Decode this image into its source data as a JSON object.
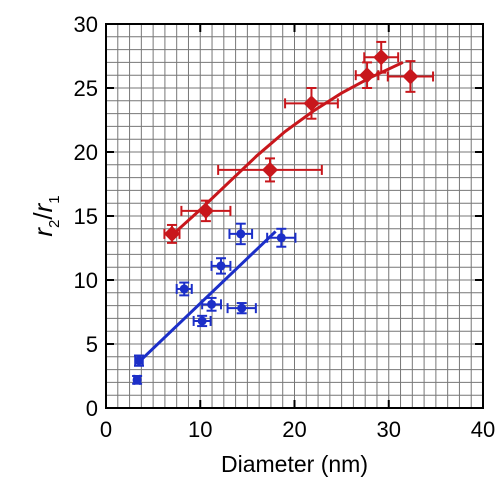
{
  "chart_data": {
    "type": "scatter",
    "title": "",
    "xlabel": "Diameter (nm)",
    "ylabel": {
      "base1": "r",
      "sub1": "2",
      "slash": "/",
      "base2": "r",
      "sub2": "1"
    },
    "xlim": [
      0,
      40
    ],
    "ylim": [
      0,
      30
    ],
    "xticks": [
      0,
      10,
      20,
      30,
      40
    ],
    "yticks": [
      0,
      5,
      10,
      15,
      20,
      25,
      30
    ],
    "grid": true,
    "grid_minor_step": {
      "x": 1.25,
      "y": 1.0
    },
    "legend": "none",
    "series": [
      {
        "color": "#c8171c",
        "marker": "diamond",
        "points": [
          {
            "x": 7.0,
            "y": 13.6,
            "xerr": 0.8,
            "yerr": 0.7
          },
          {
            "x": 10.6,
            "y": 15.4,
            "xerr": 2.6,
            "yerr": 0.8
          },
          {
            "x": 17.4,
            "y": 18.6,
            "xerr": 5.5,
            "yerr": 0.9
          },
          {
            "x": 21.8,
            "y": 23.8,
            "xerr": 2.8,
            "yerr": 1.2
          },
          {
            "x": 27.7,
            "y": 26.0,
            "xerr": 1.2,
            "yerr": 1.0
          },
          {
            "x": 29.2,
            "y": 27.4,
            "xerr": 1.8,
            "yerr": 1.2
          },
          {
            "x": 32.3,
            "y": 25.9,
            "xerr": 2.4,
            "yerr": 1.2
          }
        ],
        "fit": {
          "kind": "curve",
          "x": [
            7.0,
            10.0,
            13.0,
            16.0,
            19.0,
            22.0,
            25.0,
            28.0,
            31.5
          ],
          "y": [
            13.5,
            15.5,
            17.6,
            19.7,
            21.6,
            23.2,
            24.6,
            25.8,
            27.0
          ]
        }
      },
      {
        "color": "#1c2fc8",
        "marker": "circle",
        "points": [
          {
            "x": 3.3,
            "y": 2.2,
            "xerr": 0.3,
            "yerr": 0.3
          },
          {
            "x": 3.5,
            "y": 3.7,
            "xerr": 0.4,
            "yerr": 0.4
          },
          {
            "x": 8.3,
            "y": 9.3,
            "xerr": 0.8,
            "yerr": 0.5
          },
          {
            "x": 10.2,
            "y": 6.8,
            "xerr": 0.9,
            "yerr": 0.4
          },
          {
            "x": 11.2,
            "y": 8.1,
            "xerr": 1.0,
            "yerr": 0.5
          },
          {
            "x": 12.2,
            "y": 11.1,
            "xerr": 1.0,
            "yerr": 0.6
          },
          {
            "x": 14.3,
            "y": 13.6,
            "xerr": 1.2,
            "yerr": 0.8
          },
          {
            "x": 14.4,
            "y": 7.8,
            "xerr": 1.5,
            "yerr": 0.4
          },
          {
            "x": 18.6,
            "y": 13.3,
            "xerr": 1.5,
            "yerr": 0.7
          }
        ],
        "fit": {
          "kind": "line",
          "x": [
            3.5,
            18.0
          ],
          "y": [
            3.6,
            13.8
          ]
        }
      }
    ]
  }
}
